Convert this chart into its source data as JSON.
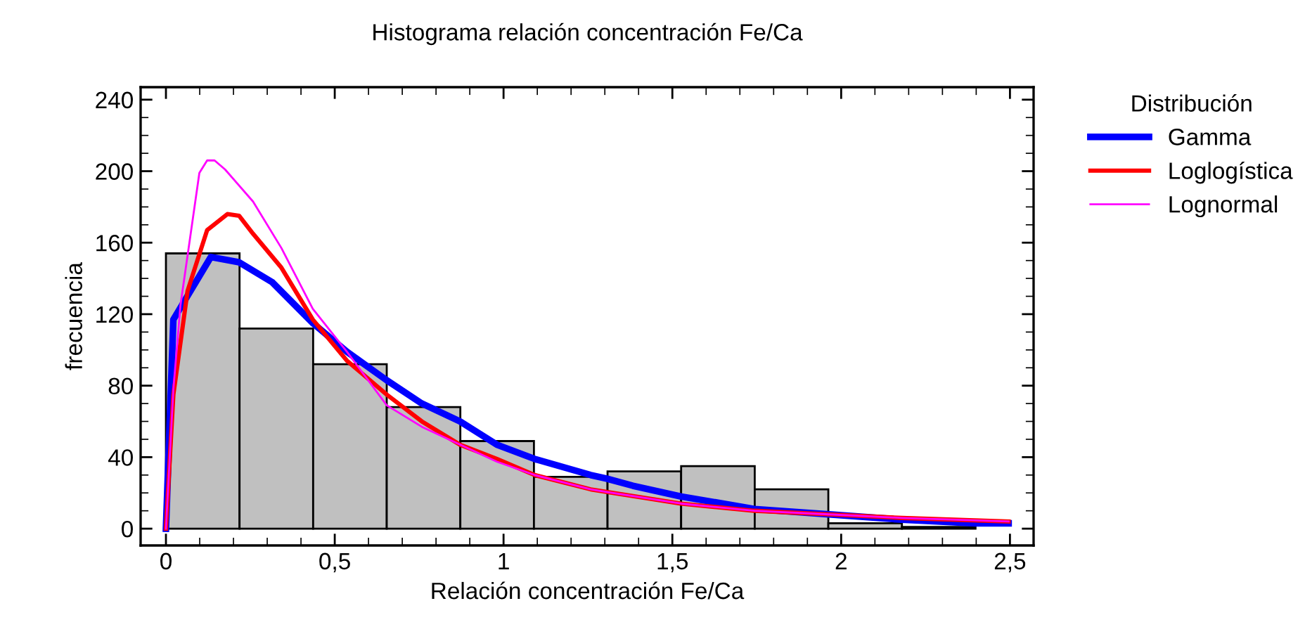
{
  "chart_data": {
    "type": "histogram",
    "title": "Histograma relación concentración Fe/Ca",
    "xlabel": "Relación concentración Fe/Ca",
    "ylabel": "frecuencia",
    "legend_title": "Distribución",
    "legend": "right",
    "bins": [
      0,
      0.218,
      0.436,
      0.654,
      0.872,
      1.09,
      1.308,
      1.526,
      1.744,
      1.962,
      2.18,
      2.398
    ],
    "values": [
      154,
      112,
      92,
      68,
      49,
      29,
      32,
      35,
      22,
      3,
      1
    ],
    "color": "#c0c0c0",
    "series": [
      {
        "name": "Gamma",
        "type": "line",
        "color": "#0000ff",
        "x": [
          0,
          0.022,
          0.133,
          0.217,
          0.314,
          0.435,
          0.536,
          0.654,
          0.758,
          0.871,
          0.98,
          1.092,
          1.258,
          1.305,
          1.383,
          1.526,
          1.743,
          1.964,
          2.18,
          2.397,
          2.496
        ],
        "values": [
          0,
          117,
          152,
          149,
          138,
          115,
          99,
          83,
          70,
          60,
          47,
          39,
          30,
          28,
          24,
          18,
          11,
          8,
          5,
          3,
          3
        ]
      },
      {
        "name": "Loglogística",
        "type": "line",
        "color": "#ff0000",
        "x": [
          0,
          0.022,
          0.064,
          0.122,
          0.182,
          0.217,
          0.258,
          0.342,
          0.435,
          0.536,
          0.654,
          0.758,
          0.871,
          0.98,
          1.092,
          1.258,
          1.526,
          1.743,
          1.964,
          2.18,
          2.496
        ],
        "values": [
          0,
          75,
          133,
          167,
          176,
          175,
          165,
          146,
          117,
          94,
          75,
          60,
          47,
          39,
          30,
          22,
          14,
          10,
          8,
          6,
          4
        ]
      },
      {
        "name": "Lognormal",
        "type": "line",
        "color": "#ff00ff",
        "x": [
          0,
          0.022,
          0.043,
          0.099,
          0.122,
          0.144,
          0.175,
          0.258,
          0.342,
          0.435,
          0.536,
          0.654,
          0.758,
          0.871,
          0.98,
          1.092,
          1.258,
          1.305,
          1.526,
          1.743,
          1.964,
          2.18,
          2.496
        ],
        "values": [
          0,
          78,
          125,
          199,
          206,
          206,
          201,
          183,
          157,
          123,
          99,
          69,
          57,
          47,
          37.5,
          30,
          22,
          20.5,
          14,
          10,
          8,
          6,
          4
        ]
      }
    ],
    "xlim": [
      -0.075,
      2.57
    ],
    "ylim": [
      -9.4,
      247
    ],
    "xticks": [
      0,
      {
        "value": 0.5,
        "label": "0,5"
      },
      1,
      {
        "value": 1.5,
        "label": "1,5"
      },
      2,
      {
        "value": 2.5,
        "label": "2,5"
      }
    ],
    "yticks": [
      0,
      40,
      80,
      120,
      160,
      200,
      240
    ],
    "grid": false
  }
}
